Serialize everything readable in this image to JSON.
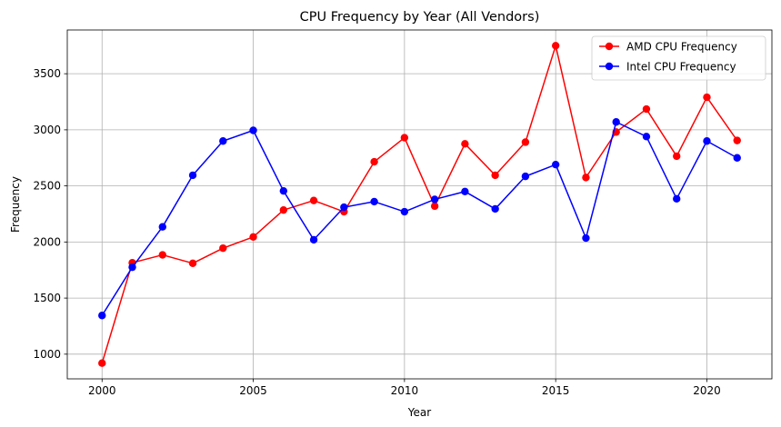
{
  "chart_data": {
    "type": "line",
    "title": "CPU Frequency by Year (All Vendors)",
    "xlabel": "Year",
    "ylabel": "Frequency",
    "xlim": [
      1998.85,
      2022.15
    ],
    "ylim": [
      780,
      3890
    ],
    "x": [
      2000,
      2001,
      2002,
      2003,
      2004,
      2005,
      2006,
      2007,
      2008,
      2009,
      2010,
      2011,
      2012,
      2013,
      2014,
      2015,
      2016,
      2017,
      2018,
      2019,
      2020,
      2021
    ],
    "x_ticks": [
      2000,
      2005,
      2010,
      2015,
      2020
    ],
    "y_ticks": [
      1000,
      1500,
      2000,
      2500,
      3000,
      3500
    ],
    "grid": true,
    "legend_position": "top-right",
    "series": [
      {
        "name": "AMD CPU Frequency",
        "color": "#ff0000",
        "values": [
          920,
          1815,
          1885,
          1810,
          1945,
          2045,
          2285,
          2370,
          2270,
          2715,
          2930,
          2320,
          2875,
          2595,
          2890,
          3750,
          2575,
          2980,
          3185,
          2765,
          3290,
          2905
        ]
      },
      {
        "name": "Intel CPU Frequency",
        "color": "#0000ff",
        "values": [
          1345,
          1775,
          2135,
          2595,
          2900,
          2995,
          2455,
          2020,
          2310,
          2360,
          2270,
          2380,
          2450,
          2295,
          2585,
          2690,
          2035,
          3070,
          2940,
          2385,
          2900,
          2750
        ]
      }
    ]
  }
}
